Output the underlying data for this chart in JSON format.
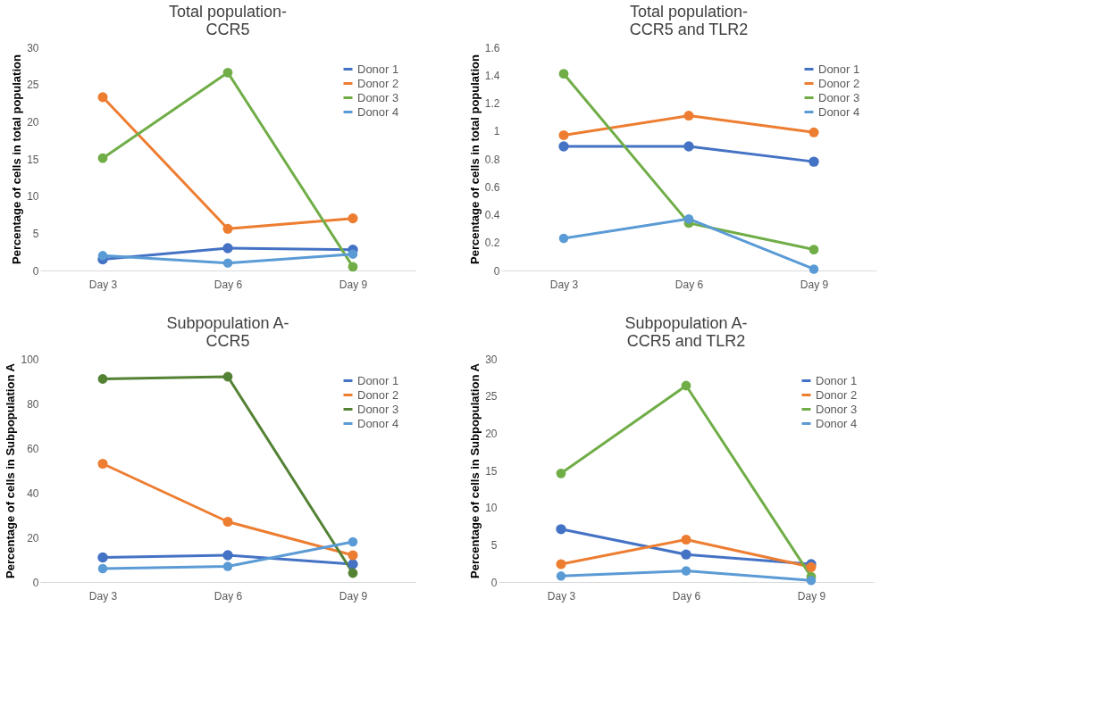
{
  "chart_data": [
    {
      "type": "line",
      "title": "Total population-\nCCR5",
      "ylabel": "Percentage of cells in total population",
      "categories": [
        "Day 3",
        "Day 6",
        "Day 9"
      ],
      "ylim": [
        0,
        30
      ],
      "yticks": [
        0,
        5,
        10,
        15,
        20,
        25,
        30
      ],
      "grid": false,
      "legend": "top right",
      "marker": "circle",
      "line_style": "solid",
      "series": [
        {
          "name": "Donor 1",
          "color": "#4472c4",
          "values": [
            1.5,
            3.0,
            2.8
          ]
        },
        {
          "name": "Donor 2",
          "color": "#ed7d31",
          "values": [
            23.3,
            5.6,
            7.0
          ]
        },
        {
          "name": "Donor 3",
          "color": "#70ad47",
          "values": [
            15.1,
            26.6,
            0.5
          ]
        },
        {
          "name": "Donor 4",
          "color": "#5b9bd5",
          "values": [
            2.0,
            1.0,
            2.2
          ]
        }
      ]
    },
    {
      "type": "line",
      "title": "Total population-\nCCR5 and TLR2",
      "ylabel": "Percentage of cells in total population",
      "categories": [
        "Day 3",
        "Day 6",
        "Day 9"
      ],
      "ylim": [
        0,
        1.6
      ],
      "yticks": [
        0,
        0.2,
        0.4,
        0.6,
        0.8,
        1,
        1.2,
        1.4,
        1.6
      ],
      "grid": false,
      "legend": "top right",
      "marker": "circle",
      "line_style": "solid",
      "series": [
        {
          "name": "Donor 1",
          "color": "#4472c4",
          "values": [
            0.89,
            0.89,
            0.78
          ]
        },
        {
          "name": "Donor 2",
          "color": "#ed7d31",
          "values": [
            0.97,
            1.11,
            0.99
          ]
        },
        {
          "name": "Donor 3",
          "color": "#70ad47",
          "values": [
            1.41,
            0.34,
            0.15
          ]
        },
        {
          "name": "Donor 4",
          "color": "#5b9bd5",
          "values": [
            0.23,
            0.37,
            0.01
          ]
        }
      ]
    },
    {
      "type": "line",
      "title": "Subpopulation A-\nCCR5",
      "ylabel": "Percentage of cells in Subpopulation A",
      "categories": [
        "Day 3",
        "Day 6",
        "Day 9"
      ],
      "ylim": [
        0,
        100
      ],
      "yticks": [
        0,
        20,
        40,
        60,
        80,
        100
      ],
      "grid": false,
      "legend": "top right",
      "marker": "circle",
      "line_style": "solid",
      "series": [
        {
          "name": "Donor 1",
          "color": "#4472c4",
          "values": [
            11,
            12,
            8
          ]
        },
        {
          "name": "Donor 2",
          "color": "#ed7d31",
          "values": [
            53,
            27,
            12
          ]
        },
        {
          "name": "Donor 3",
          "color": "#548235",
          "values": [
            91,
            92,
            4
          ]
        },
        {
          "name": "Donor 4",
          "color": "#5b9bd5",
          "values": [
            6,
            7,
            18
          ]
        }
      ]
    },
    {
      "type": "line",
      "title": "Subpopulation A-\nCCR5 and TLR2",
      "ylabel": "Percentage of cells in Subpopulation A",
      "categories": [
        "Day 3",
        "Day 6",
        "Day 9"
      ],
      "ylim": [
        0,
        30
      ],
      "yticks": [
        0,
        5,
        10,
        15,
        20,
        25,
        30
      ],
      "grid": false,
      "legend": "top right",
      "marker": "circle",
      "line_style": "solid",
      "series": [
        {
          "name": "Donor 1",
          "color": "#4472c4",
          "values": [
            7.1,
            3.7,
            2.4
          ]
        },
        {
          "name": "Donor 2",
          "color": "#ed7d31",
          "values": [
            2.4,
            5.7,
            2.0
          ]
        },
        {
          "name": "Donor 3",
          "color": "#70ad47",
          "values": [
            14.6,
            26.4,
            0.7
          ]
        },
        {
          "name": "Donor 4",
          "color": "#5b9bd5",
          "values": [
            0.8,
            1.5,
            0.2
          ]
        }
      ]
    }
  ]
}
